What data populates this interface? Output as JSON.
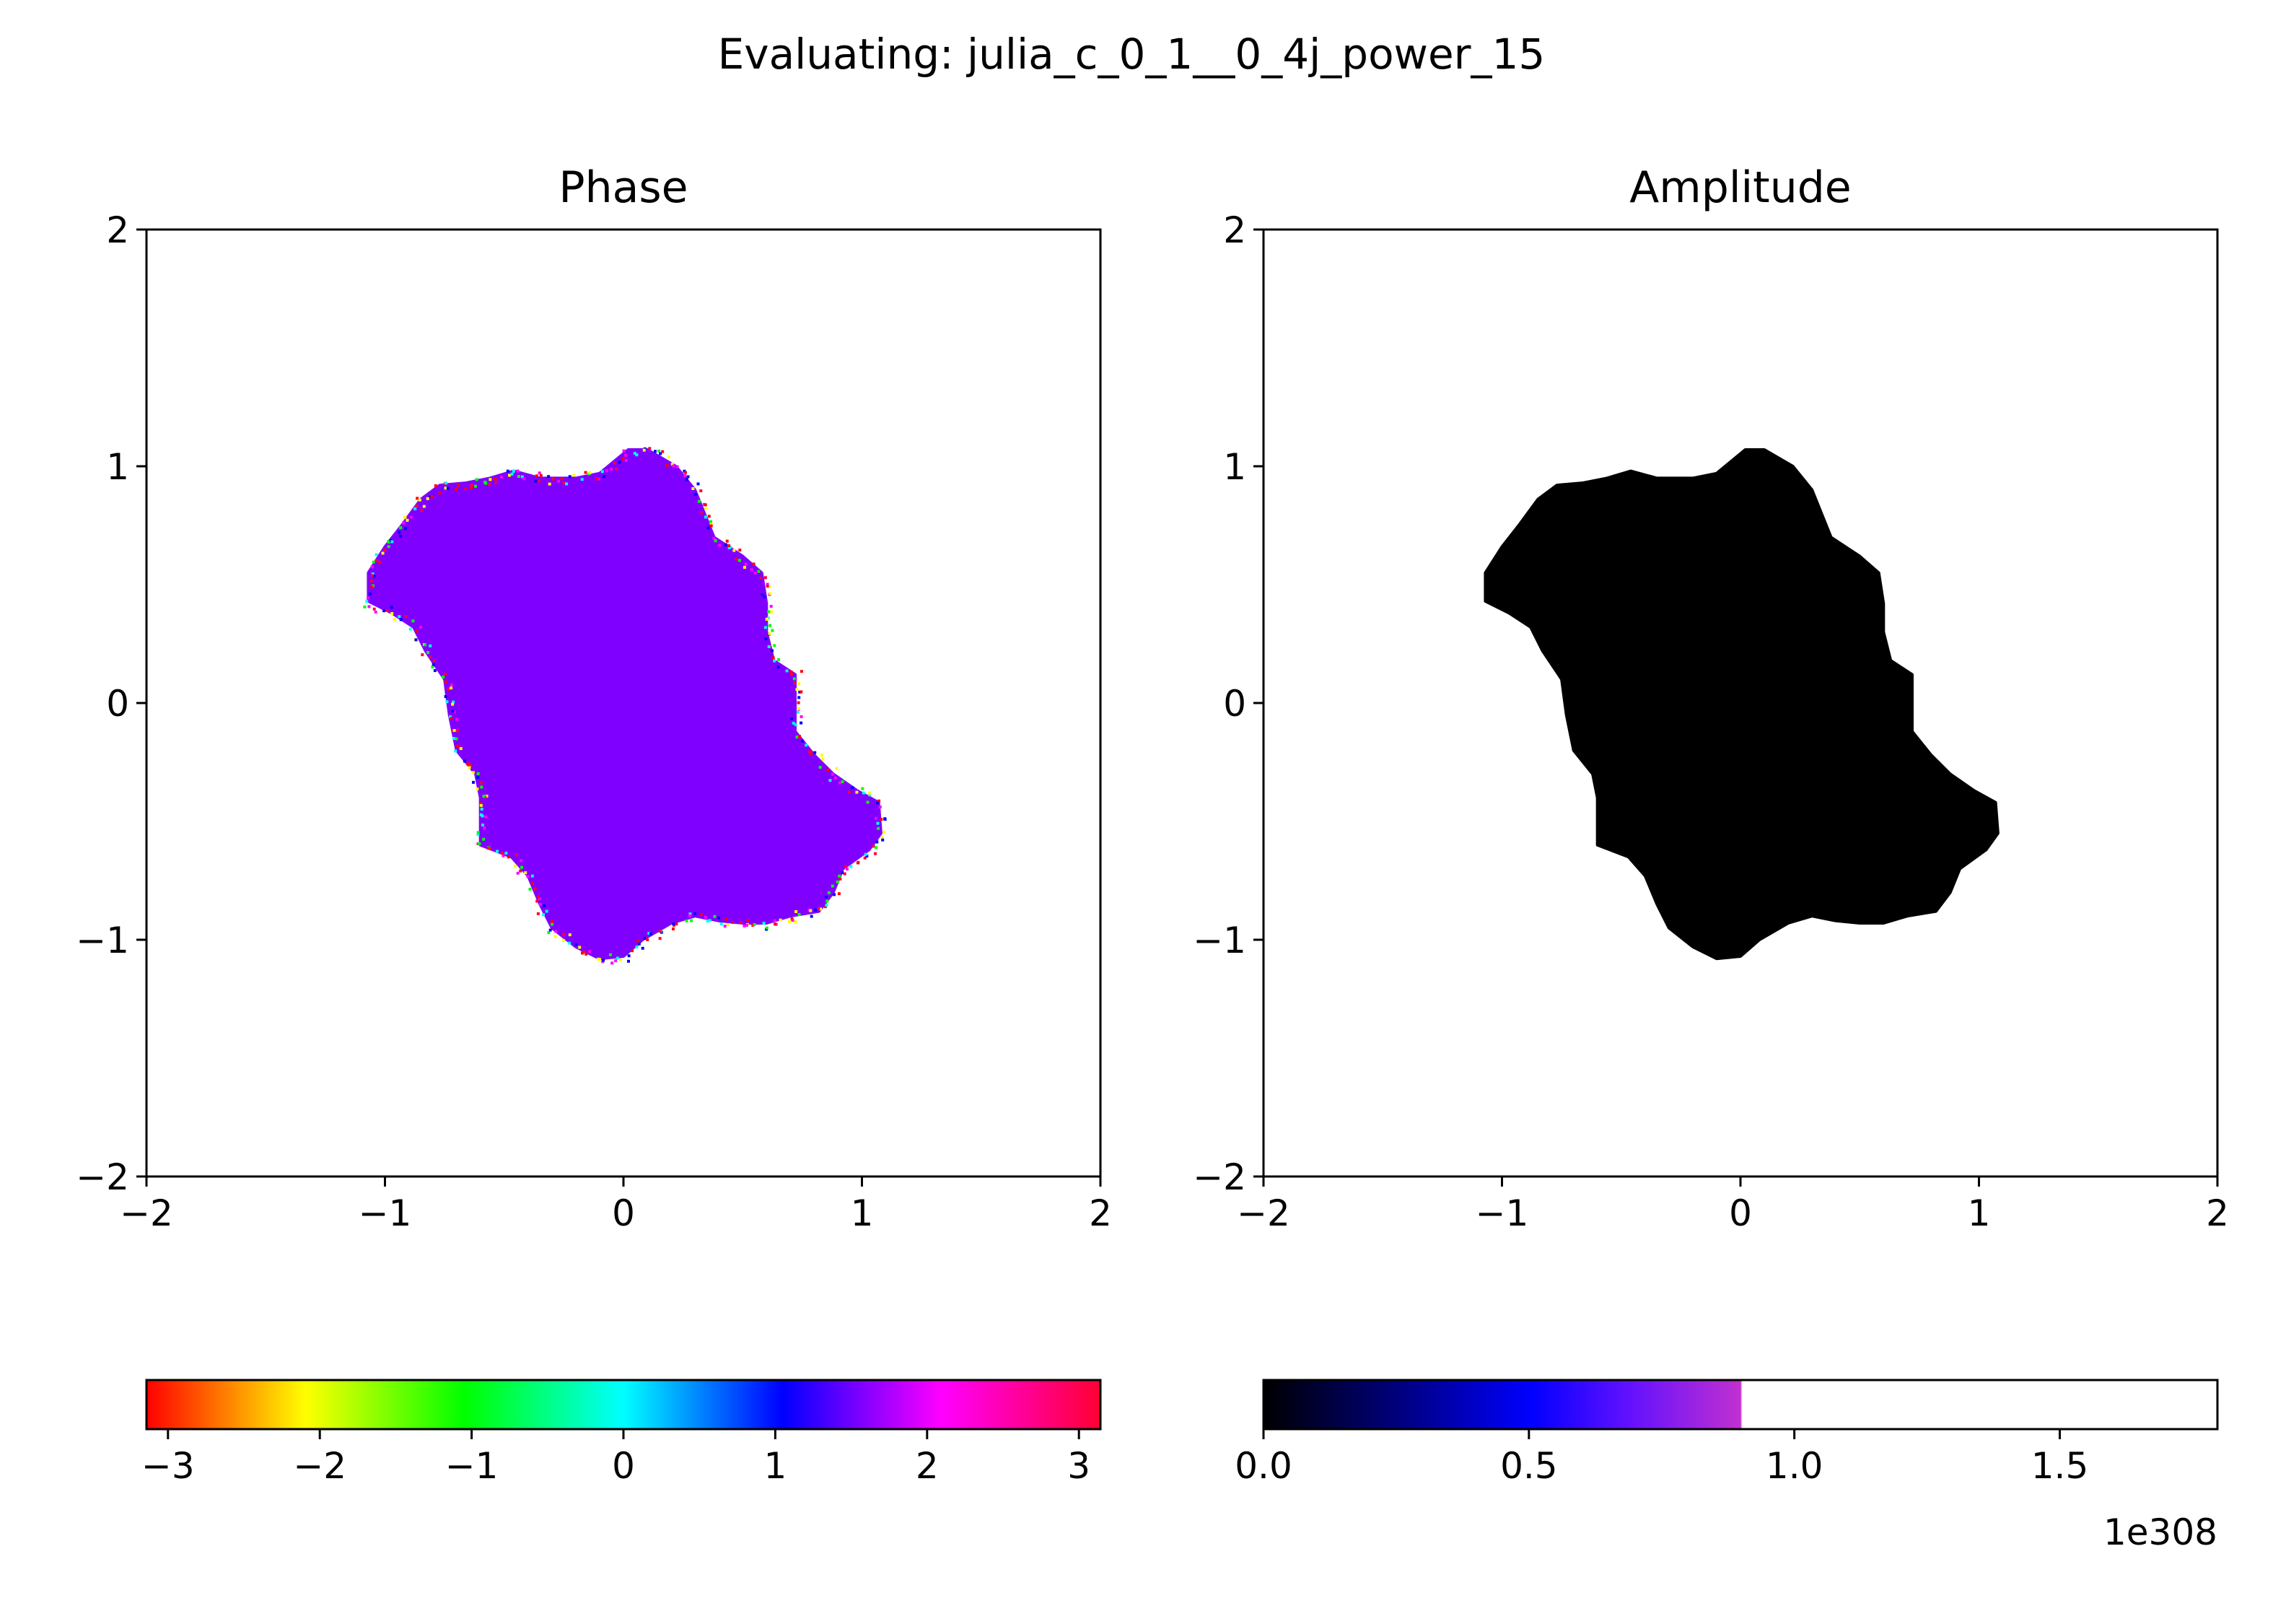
{
  "figure": {
    "suptitle": "Evaluating: julia_c_0_1__0_4j_power_15"
  },
  "chart_data": [
    {
      "type": "heatmap",
      "title": "Phase",
      "xlim": [
        -2,
        2
      ],
      "ylim": [
        -2,
        2
      ],
      "xticks": [
        -2,
        -1,
        0,
        1,
        2
      ],
      "yticks": [
        -2,
        -1,
        0,
        1,
        2
      ],
      "xtick_labels": [
        "−2",
        "−1",
        "0",
        "1",
        "2"
      ],
      "ytick_labels": [
        "−2",
        "−1",
        "0",
        "1",
        "2"
      ],
      "grid": false,
      "background_color": "#ffffff",
      "fill_color": "#8000ff",
      "fill_value_approx": 1.6,
      "boundary_noise": true,
      "set_boundary": [
        [
          -1.07,
          0.43
        ],
        [
          -1.07,
          0.55
        ],
        [
          -1.0,
          0.66
        ],
        [
          -0.93,
          0.75
        ],
        [
          -0.85,
          0.86
        ],
        [
          -0.77,
          0.92
        ],
        [
          -0.66,
          0.93
        ],
        [
          -0.56,
          0.95
        ],
        [
          -0.46,
          0.98
        ],
        [
          -0.35,
          0.95
        ],
        [
          -0.2,
          0.95
        ],
        [
          -0.1,
          0.97
        ],
        [
          0.02,
          1.07
        ],
        [
          0.1,
          1.07
        ],
        [
          0.22,
          1.0
        ],
        [
          0.3,
          0.9
        ],
        [
          0.38,
          0.7
        ],
        [
          0.5,
          0.62
        ],
        [
          0.58,
          0.55
        ],
        [
          0.6,
          0.42
        ],
        [
          0.6,
          0.3
        ],
        [
          0.63,
          0.18
        ],
        [
          0.72,
          0.12
        ],
        [
          0.72,
          0.0
        ],
        [
          0.72,
          -0.12
        ],
        [
          0.8,
          -0.22
        ],
        [
          0.88,
          -0.3
        ],
        [
          0.98,
          -0.37
        ],
        [
          1.07,
          -0.42
        ],
        [
          1.08,
          -0.55
        ],
        [
          1.03,
          -0.62
        ],
        [
          0.92,
          -0.7
        ],
        [
          0.88,
          -0.8
        ],
        [
          0.82,
          -0.88
        ],
        [
          0.7,
          -0.9
        ],
        [
          0.6,
          -0.93
        ],
        [
          0.5,
          -0.93
        ],
        [
          0.4,
          -0.92
        ],
        [
          0.3,
          -0.9
        ],
        [
          0.2,
          -0.93
        ],
        [
          0.08,
          -1.0
        ],
        [
          0.0,
          -1.07
        ],
        [
          -0.1,
          -1.08
        ],
        [
          -0.2,
          -1.03
        ],
        [
          -0.3,
          -0.95
        ],
        [
          -0.35,
          -0.85
        ],
        [
          -0.4,
          -0.73
        ],
        [
          -0.47,
          -0.65
        ],
        [
          -0.6,
          -0.6
        ],
        [
          -0.6,
          -0.4
        ],
        [
          -0.62,
          -0.3
        ],
        [
          -0.7,
          -0.2
        ],
        [
          -0.73,
          -0.05
        ],
        [
          -0.75,
          0.1
        ],
        [
          -0.83,
          0.22
        ],
        [
          -0.88,
          0.32
        ],
        [
          -0.97,
          0.38
        ]
      ],
      "colorbar": {
        "orientation": "horizontal",
        "colormap": "hsv",
        "colors": [
          "#ff0000",
          "#ffff00",
          "#00ff00",
          "#00ffff",
          "#0000ff",
          "#ff00ff",
          "#ff0033"
        ],
        "range": [
          -3.14159,
          3.14159
        ],
        "ticks": [
          -3,
          -2,
          -1,
          0,
          1,
          2,
          3
        ],
        "tick_labels": [
          "−3",
          "−2",
          "−1",
          "0",
          "1",
          "2",
          "3"
        ]
      }
    },
    {
      "type": "heatmap",
      "title": "Amplitude",
      "xlim": [
        -2,
        2
      ],
      "ylim": [
        -2,
        2
      ],
      "xticks": [
        -2,
        -1,
        0,
        1,
        2
      ],
      "yticks": [
        -2,
        -1,
        0,
        1,
        2
      ],
      "xtick_labels": [
        "−2",
        "−1",
        "0",
        "1",
        "2"
      ],
      "ytick_labels": [
        "−2",
        "−1",
        "0",
        "1",
        "2"
      ],
      "grid": false,
      "background_color": "#ffffff",
      "fill_color": "#000000",
      "fill_value_approx": 0,
      "boundary_noise": false,
      "set_boundary": [
        [
          -1.07,
          0.43
        ],
        [
          -1.07,
          0.55
        ],
        [
          -1.0,
          0.66
        ],
        [
          -0.93,
          0.75
        ],
        [
          -0.85,
          0.86
        ],
        [
          -0.77,
          0.92
        ],
        [
          -0.66,
          0.93
        ],
        [
          -0.56,
          0.95
        ],
        [
          -0.46,
          0.98
        ],
        [
          -0.35,
          0.95
        ],
        [
          -0.2,
          0.95
        ],
        [
          -0.1,
          0.97
        ],
        [
          0.02,
          1.07
        ],
        [
          0.1,
          1.07
        ],
        [
          0.22,
          1.0
        ],
        [
          0.3,
          0.9
        ],
        [
          0.38,
          0.7
        ],
        [
          0.5,
          0.62
        ],
        [
          0.58,
          0.55
        ],
        [
          0.6,
          0.42
        ],
        [
          0.6,
          0.3
        ],
        [
          0.63,
          0.18
        ],
        [
          0.72,
          0.12
        ],
        [
          0.72,
          0.0
        ],
        [
          0.72,
          -0.12
        ],
        [
          0.8,
          -0.22
        ],
        [
          0.88,
          -0.3
        ],
        [
          0.98,
          -0.37
        ],
        [
          1.07,
          -0.42
        ],
        [
          1.08,
          -0.55
        ],
        [
          1.03,
          -0.62
        ],
        [
          0.92,
          -0.7
        ],
        [
          0.88,
          -0.8
        ],
        [
          0.82,
          -0.88
        ],
        [
          0.7,
          -0.9
        ],
        [
          0.6,
          -0.93
        ],
        [
          0.5,
          -0.93
        ],
        [
          0.4,
          -0.92
        ],
        [
          0.3,
          -0.9
        ],
        [
          0.2,
          -0.93
        ],
        [
          0.08,
          -1.0
        ],
        [
          0.0,
          -1.07
        ],
        [
          -0.1,
          -1.08
        ],
        [
          -0.2,
          -1.03
        ],
        [
          -0.3,
          -0.95
        ],
        [
          -0.35,
          -0.85
        ],
        [
          -0.4,
          -0.73
        ],
        [
          -0.47,
          -0.65
        ],
        [
          -0.6,
          -0.6
        ],
        [
          -0.6,
          -0.4
        ],
        [
          -0.62,
          -0.3
        ],
        [
          -0.7,
          -0.2
        ],
        [
          -0.73,
          -0.05
        ],
        [
          -0.75,
          0.1
        ],
        [
          -0.83,
          0.22
        ],
        [
          -0.88,
          0.32
        ],
        [
          -0.97,
          0.38
        ]
      ],
      "colorbar": {
        "orientation": "horizontal",
        "colormap": "gnuplot2",
        "colors": [
          "#000000",
          "#0000a0",
          "#0000ff",
          "#6010ff",
          "#c030d0",
          "#ffffff",
          "#ffffff"
        ],
        "color_stops": [
          0,
          0.18,
          0.28,
          0.38,
          0.5,
          0.502,
          1
        ],
        "range": [
          0,
          1.797e+308
        ],
        "ticks": [
          0,
          5e+307,
          1e+308,
          1.5e+308
        ],
        "tick_labels": [
          "0.0",
          "0.5",
          "1.0",
          "1.5"
        ],
        "offset_text": "1e308"
      }
    }
  ]
}
